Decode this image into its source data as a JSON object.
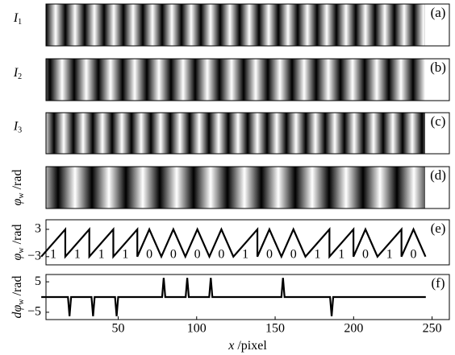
{
  "chart_data": [
    {
      "type": "image",
      "ylabel": {
        "main": "I",
        "sub": "1"
      },
      "tag": "(a)"
    },
    {
      "type": "image",
      "ylabel": {
        "main": "I",
        "sub": "2"
      },
      "tag": "(b)"
    },
    {
      "type": "image",
      "ylabel": {
        "main": "I",
        "sub": "3"
      },
      "tag": "(c)"
    },
    {
      "type": "image",
      "ylabel": {
        "main": "φ",
        "sub": "w",
        "unit": " /rad"
      },
      "tag": "(d)"
    },
    {
      "type": "line",
      "ylabel": {
        "main": "φ",
        "sub": "w",
        "unit": " /rad"
      },
      "tag": "(e)",
      "xlim": [
        4,
        261
      ],
      "ylim": [
        -4.8,
        5.1
      ],
      "yticks": [
        3,
        {
          "value": -3,
          "label": "−3"
        }
      ],
      "codes": [
        1,
        1,
        1,
        1,
        0,
        0,
        0,
        0,
        1,
        0,
        0,
        1,
        1,
        0,
        1,
        0
      ],
      "color": "#000000",
      "x": [
        1,
        16.3,
        16.3,
        31.6,
        31.6,
        46.9,
        46.9,
        62.2,
        62.2,
        69.85,
        77.5,
        85.15,
        92.8,
        100.45,
        108.1,
        115.75,
        123.4,
        138.7,
        138.7,
        146.35,
        154,
        161.65,
        169.3,
        184.6,
        184.6,
        199.9,
        199.9,
        207.55,
        215.2,
        230.5,
        230.5,
        238.15,
        245.8
      ],
      "values": [
        -3,
        3,
        -3,
        3,
        -3,
        3,
        -3,
        3,
        -3,
        3,
        -3,
        3,
        -3,
        3,
        -3,
        3,
        -3,
        3,
        -3,
        3,
        -3,
        3,
        -3,
        3,
        -3,
        3,
        -3,
        3,
        -3,
        3,
        -3,
        3,
        -3
      ]
    },
    {
      "type": "line",
      "ylabel": {
        "main": "dφ",
        "sub": "w",
        "unit": " /rad"
      },
      "tag": "(f)",
      "xlim": [
        4,
        261
      ],
      "ylim": [
        -7.4,
        7.4
      ],
      "yticks": [
        5,
        {
          "value": -5,
          "label": "−5"
        }
      ],
      "xticks": [
        50,
        100,
        150,
        200,
        250
      ],
      "xlabel": {
        "main": "x",
        "unit": " /pixel"
      },
      "color": "#000000",
      "x": [
        1,
        18,
        19,
        20,
        33,
        34,
        35,
        48,
        49,
        50,
        78,
        79,
        80,
        93,
        94,
        95,
        108,
        109,
        110,
        154,
        155,
        156,
        185,
        186,
        187,
        246
      ],
      "values": [
        0,
        0,
        -6.3,
        0,
        0,
        -6.3,
        0,
        0,
        -6.3,
        0,
        0,
        6.3,
        0,
        0,
        6.3,
        0,
        0,
        6.3,
        0,
        0,
        6.3,
        0,
        0,
        -6.3,
        0,
        0
      ]
    }
  ]
}
